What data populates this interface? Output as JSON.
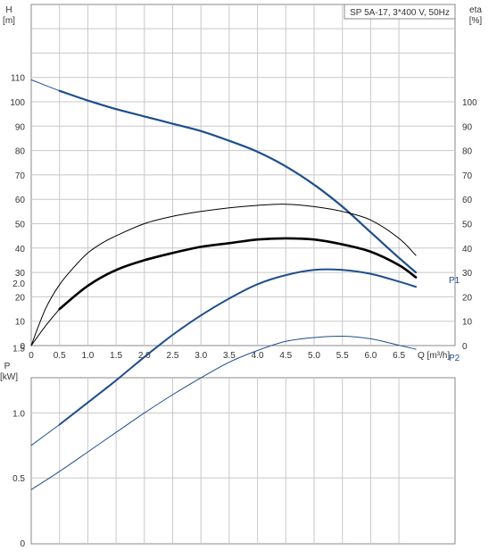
{
  "chart_data": [
    {
      "type": "line",
      "title": "SP 5A-17, 3*400 V, 50Hz",
      "xlabel": "Q [m³/h]",
      "ylabel_left": "H",
      "ylabel_left_unit": "[m]",
      "ylabel_right": "eta",
      "ylabel_right_unit": "[%]",
      "xlim": [
        0,
        7.0
      ],
      "ylim": [
        0,
        120
      ],
      "grid": true,
      "x_ticks": [
        "0",
        "0.5",
        "1.0",
        "1.5",
        "2.0",
        "2.5",
        "3.0",
        "3.5",
        "4.0",
        "4.5",
        "5.0",
        "5.5",
        "6.0",
        "6.5"
      ],
      "x_tick_values": [
        0,
        0.5,
        1.0,
        1.5,
        2.0,
        2.5,
        3.0,
        3.5,
        4.0,
        4.5,
        5.0,
        5.5,
        6.0,
        6.5
      ],
      "y_left_ticks": [
        "0",
        "10",
        "20",
        "30",
        "40",
        "50",
        "60",
        "70",
        "80",
        "90",
        "100",
        "110"
      ],
      "y_left_tick_values": [
        0,
        10,
        20,
        30,
        40,
        50,
        60,
        70,
        80,
        90,
        100,
        110
      ],
      "y_right_ticks": [
        "0",
        "10",
        "20",
        "30",
        "40",
        "50",
        "60",
        "70",
        "80",
        "90",
        "100"
      ],
      "y_right_tick_values": [
        0,
        10,
        20,
        30,
        40,
        50,
        60,
        70,
        80,
        90,
        100
      ],
      "series": [
        {
          "role": "head_extension",
          "color": "#1f4e8c",
          "x": [
            0,
            0.5
          ],
          "y": [
            109,
            104.5
          ]
        },
        {
          "role": "head",
          "color": "#1f4e8c",
          "x": [
            0.5,
            1.0,
            1.5,
            2.0,
            2.5,
            3.0,
            3.5,
            4.0,
            4.5,
            5.0,
            5.5,
            6.0,
            6.5,
            6.8
          ],
          "y": [
            104.5,
            100.5,
            97,
            94,
            91,
            88,
            84,
            79.5,
            73.5,
            66,
            57,
            46.5,
            36,
            30
          ]
        },
        {
          "role": "efficiency_thin",
          "color": "#000000",
          "x": [
            0,
            0.25,
            0.5,
            0.75,
            1.0,
            1.25,
            1.5,
            2.0,
            2.5,
            3.0,
            3.5,
            4.0,
            4.5,
            5.0,
            5.5,
            6.0,
            6.5,
            6.8
          ],
          "y": [
            0,
            15,
            25,
            32,
            38,
            42,
            45,
            50,
            53,
            55,
            56.5,
            57.5,
            58,
            57,
            55,
            51.5,
            44,
            37
          ]
        },
        {
          "role": "efficiency_thick",
          "color": "#000000",
          "x": [
            0.5,
            1.0,
            1.5,
            2.0,
            2.5,
            3.0,
            3.5,
            4.0,
            4.5,
            5.0,
            5.5,
            6.0,
            6.5,
            6.8
          ],
          "y": [
            15,
            24.5,
            31,
            35,
            38,
            40.5,
            42,
            43.5,
            44,
            43.5,
            41.5,
            38.5,
            33,
            28
          ]
        },
        {
          "role": "efficiency_start",
          "color": "#000000",
          "x": [
            0,
            0.25,
            0.5
          ],
          "y": [
            0,
            8,
            15
          ]
        }
      ]
    },
    {
      "type": "line",
      "ylabel_left": "P",
      "ylabel_left_unit": "[kW]",
      "xlim": [
        0,
        7.0
      ],
      "ylim": [
        0,
        2.5
      ],
      "grid": true,
      "y_left_ticks": [
        "0",
        "0.5",
        "1.0",
        "1.5",
        "2.0"
      ],
      "y_left_tick_values": [
        0,
        0.5,
        1.0,
        1.5,
        2.0
      ],
      "series": [
        {
          "name": "P1",
          "color": "#1f4e8c",
          "x": [
            0,
            0.5,
            1.0,
            1.5,
            2.0,
            2.5,
            3.0,
            3.5,
            4.0,
            4.5,
            5.0,
            5.5,
            6.0,
            6.5,
            6.8
          ],
          "y": [
            0.75,
            0.91,
            1.08,
            1.25,
            1.43,
            1.6,
            1.75,
            1.88,
            1.99,
            2.06,
            2.1,
            2.1,
            2.07,
            2.01,
            1.97
          ],
          "thick_from": 0.5
        },
        {
          "name": "P2",
          "color": "#1f4e8c",
          "x": [
            0,
            0.5,
            1.0,
            1.5,
            2.0,
            2.5,
            3.0,
            3.5,
            4.0,
            4.5,
            5.0,
            5.5,
            6.0,
            6.5,
            6.8
          ],
          "y": [
            0.41,
            0.55,
            0.7,
            0.85,
            1.0,
            1.14,
            1.27,
            1.39,
            1.48,
            1.55,
            1.58,
            1.59,
            1.57,
            1.52,
            1.49
          ],
          "thick_from": 99
        }
      ]
    }
  ]
}
